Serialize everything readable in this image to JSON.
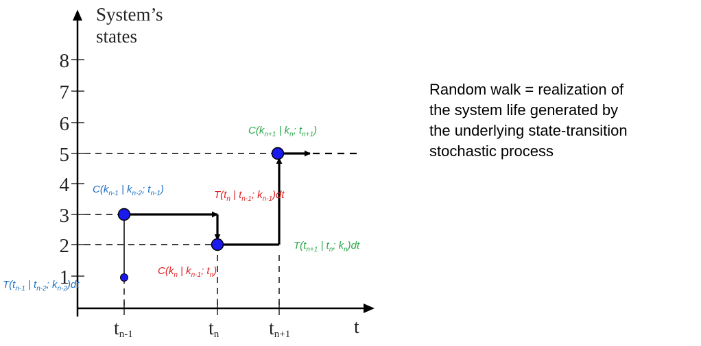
{
  "axes": {
    "y_title_line1": "System’s",
    "y_title_line2": "states",
    "y_ticks": [
      "1",
      "2",
      "3",
      "4",
      "5",
      "6",
      "7",
      "8"
    ],
    "x_axis_label": "t",
    "x_ticks": [
      {
        "main": "t",
        "sub": "n-1"
      },
      {
        "main": "t",
        "sub": "n"
      },
      {
        "main": "t",
        "sub": "n+1"
      }
    ]
  },
  "walk": {
    "states": [
      1,
      3,
      2,
      5
    ],
    "jump_times": [
      "t_{n-1}",
      "t_n",
      "t_{n+1}"
    ]
  },
  "labels": {
    "c_prev": {
      "p1": "C(k",
      "s1": "n-1",
      "p2": " | k",
      "s2": "n-2",
      "p3": "; t",
      "s3": "n-1",
      "p4": ")"
    },
    "t_prev": {
      "p1": "T(t",
      "s1": "n-1",
      "p2": " | t",
      "s2": "n-2",
      "p3": "; k",
      "s3": "n-2",
      "p4": ")dt"
    },
    "t_cur": {
      "p1": "T(t",
      "s1": "n",
      "p2": " | t",
      "s2": "n-1",
      "p3": "; k",
      "s3": "n-1",
      "p4": ")dt"
    },
    "c_cur": {
      "p1": "C(k",
      "s1": "n",
      "p2": " | k",
      "s2": "n-1",
      "p3": "; t",
      "s3": "n",
      "p4": ")"
    },
    "c_next": {
      "p1": "C(k",
      "s1": "n+1",
      "p2": " | k",
      "s2": "n",
      "p3": "; t",
      "s3": "n+1",
      "p4": ")"
    },
    "t_next": {
      "p1": "T(t",
      "s1": "n+1",
      "p2": " | t",
      "s2": "n",
      "p3": "; k",
      "s3": "n",
      "p4": ")dt"
    }
  },
  "caption": {
    "lines": [
      "Random walk = realization of",
      "the system life generated by",
      "the underlying state-transition",
      "stochastic process"
    ]
  },
  "colors": {
    "blue": "#1f6fc4",
    "red": "#e02020",
    "green": "#2aa84a",
    "node_fill": "#1a1aee",
    "axis": "#000000"
  }
}
